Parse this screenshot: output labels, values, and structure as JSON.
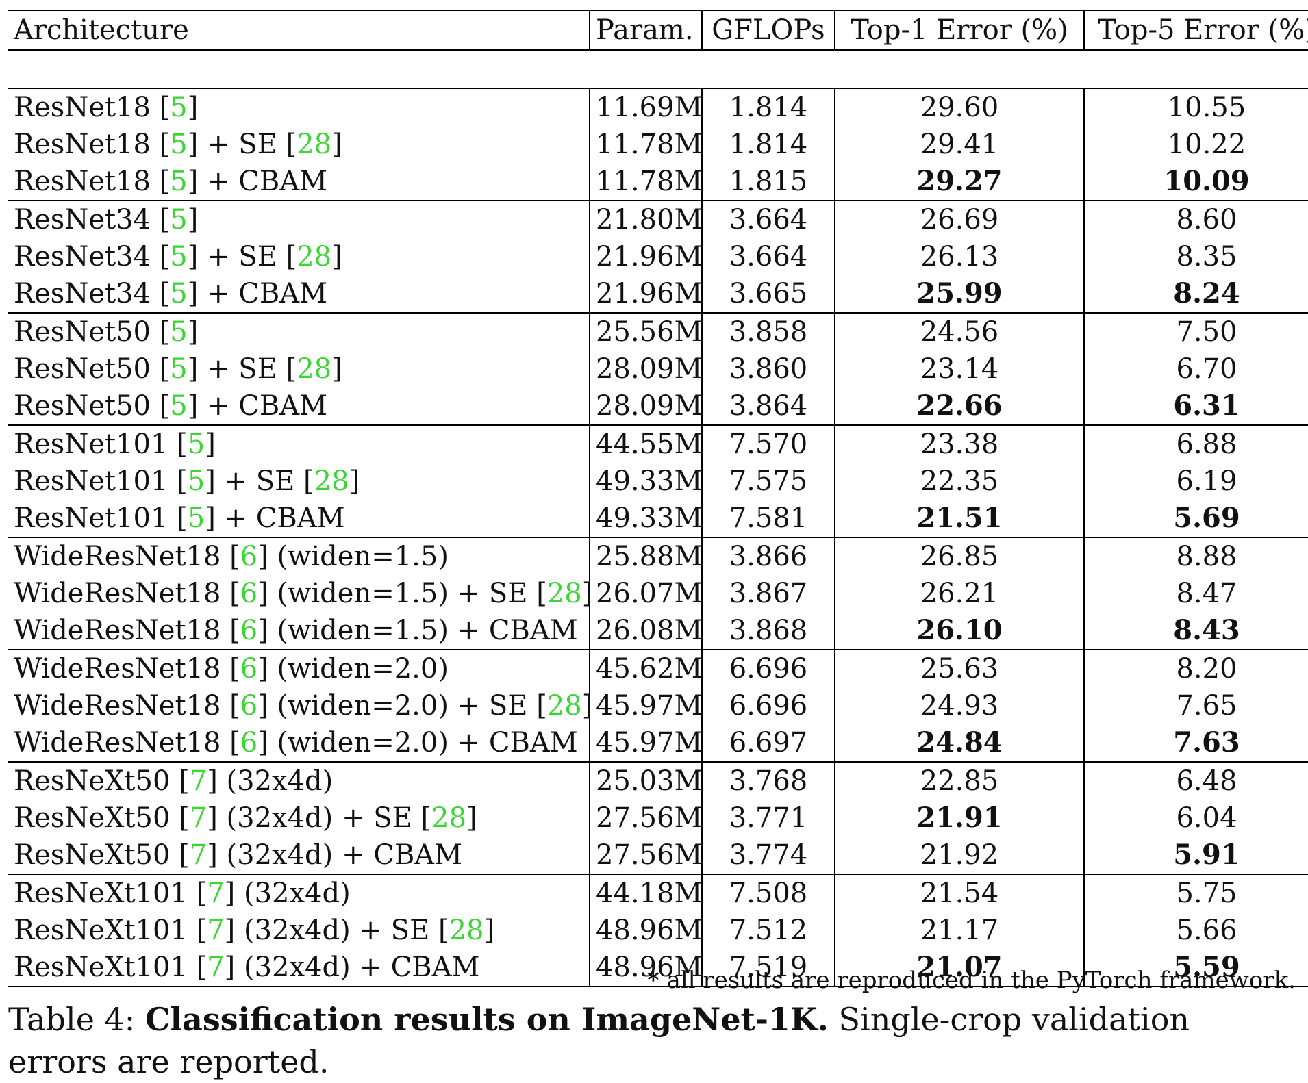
{
  "table": {
    "headers": {
      "architecture": "Architecture",
      "param": "Param.",
      "gflops": "GFLOPs",
      "top1": "Top-1 Error (%)",
      "top5": "Top-5 Error (%)"
    },
    "groups": [
      {
        "rows": [
          {
            "arch": [
              "ResNet18 [",
              {
                "ref": "5"
              },
              "]"
            ],
            "param": "11.69M",
            "gflops": "1.814",
            "top1": "29.60",
            "top5": "10.55",
            "top1_bold": false,
            "top5_bold": false
          },
          {
            "arch": [
              "ResNet18 [",
              {
                "ref": "5"
              },
              "] + SE [",
              {
                "ref": "28"
              },
              "]"
            ],
            "param": "11.78M",
            "gflops": "1.814",
            "top1": "29.41",
            "top5": "10.22",
            "top1_bold": false,
            "top5_bold": false
          },
          {
            "arch": [
              "ResNet18 [",
              {
                "ref": "5"
              },
              "] + CBAM"
            ],
            "param": "11.78M",
            "gflops": "1.815",
            "top1": "29.27",
            "top5": "10.09",
            "top1_bold": true,
            "top5_bold": true
          }
        ]
      },
      {
        "rows": [
          {
            "arch": [
              "ResNet34 [",
              {
                "ref": "5"
              },
              "]"
            ],
            "param": "21.80M",
            "gflops": "3.664",
            "top1": "26.69",
            "top5": "8.60",
            "top1_bold": false,
            "top5_bold": false
          },
          {
            "arch": [
              "ResNet34 [",
              {
                "ref": "5"
              },
              "] + SE [",
              {
                "ref": "28"
              },
              "]"
            ],
            "param": "21.96M",
            "gflops": "3.664",
            "top1": "26.13",
            "top5": "8.35",
            "top1_bold": false,
            "top5_bold": false
          },
          {
            "arch": [
              "ResNet34 [",
              {
                "ref": "5"
              },
              "] + CBAM"
            ],
            "param": "21.96M",
            "gflops": "3.665",
            "top1": "25.99",
            "top5": "8.24",
            "top1_bold": true,
            "top5_bold": true
          }
        ]
      },
      {
        "rows": [
          {
            "arch": [
              "ResNet50 [",
              {
                "ref": "5"
              },
              "]"
            ],
            "param": "25.56M",
            "gflops": "3.858",
            "top1": "24.56",
            "top5": "7.50",
            "top1_bold": false,
            "top5_bold": false
          },
          {
            "arch": [
              "ResNet50 [",
              {
                "ref": "5"
              },
              "] + SE [",
              {
                "ref": "28"
              },
              "]"
            ],
            "param": "28.09M",
            "gflops": "3.860",
            "top1": "23.14",
            "top5": "6.70",
            "top1_bold": false,
            "top5_bold": false
          },
          {
            "arch": [
              "ResNet50 [",
              {
                "ref": "5"
              },
              "] + CBAM"
            ],
            "param": "28.09M",
            "gflops": "3.864",
            "top1": "22.66",
            "top5": "6.31",
            "top1_bold": true,
            "top5_bold": true
          }
        ]
      },
      {
        "rows": [
          {
            "arch": [
              "ResNet101 [",
              {
                "ref": "5"
              },
              "]"
            ],
            "param": "44.55M",
            "gflops": "7.570",
            "top1": "23.38",
            "top5": "6.88",
            "top1_bold": false,
            "top5_bold": false
          },
          {
            "arch": [
              "ResNet101 [",
              {
                "ref": "5"
              },
              "] + SE [",
              {
                "ref": "28"
              },
              "]"
            ],
            "param": "49.33M",
            "gflops": "7.575",
            "top1": "22.35",
            "top5": "6.19",
            "top1_bold": false,
            "top5_bold": false
          },
          {
            "arch": [
              "ResNet101 [",
              {
                "ref": "5"
              },
              "] + CBAM"
            ],
            "param": "49.33M",
            "gflops": "7.581",
            "top1": "21.51",
            "top5": "5.69",
            "top1_bold": true,
            "top5_bold": true
          }
        ]
      },
      {
        "rows": [
          {
            "arch": [
              "WideResNet18 [",
              {
                "ref": "6"
              },
              "] (widen=1.5)"
            ],
            "param": "25.88M",
            "gflops": "3.866",
            "top1": "26.85",
            "top5": "8.88",
            "top1_bold": false,
            "top5_bold": false
          },
          {
            "arch": [
              "WideResNet18 [",
              {
                "ref": "6"
              },
              "] (widen=1.5) + SE [",
              {
                "ref": "28"
              },
              "]"
            ],
            "param": "26.07M",
            "gflops": "3.867",
            "top1": "26.21",
            "top5": "8.47",
            "top1_bold": false,
            "top5_bold": false
          },
          {
            "arch": [
              "WideResNet18 [",
              {
                "ref": "6"
              },
              "] (widen=1.5) + CBAM"
            ],
            "param": "26.08M",
            "gflops": "3.868",
            "top1": "26.10",
            "top5": "8.43",
            "top1_bold": true,
            "top5_bold": true
          }
        ]
      },
      {
        "rows": [
          {
            "arch": [
              "WideResNet18 [",
              {
                "ref": "6"
              },
              "] (widen=2.0)"
            ],
            "param": "45.62M",
            "gflops": "6.696",
            "top1": "25.63",
            "top5": "8.20",
            "top1_bold": false,
            "top5_bold": false
          },
          {
            "arch": [
              "WideResNet18 [",
              {
                "ref": "6"
              },
              "] (widen=2.0) + SE [",
              {
                "ref": "28"
              },
              "]"
            ],
            "param": "45.97M",
            "gflops": "6.696",
            "top1": "24.93",
            "top5": "7.65",
            "top1_bold": false,
            "top5_bold": false
          },
          {
            "arch": [
              "WideResNet18 [",
              {
                "ref": "6"
              },
              "] (widen=2.0) + CBAM"
            ],
            "param": "45.97M",
            "gflops": "6.697",
            "top1": "24.84",
            "top5": "7.63",
            "top1_bold": true,
            "top5_bold": true
          }
        ]
      },
      {
        "rows": [
          {
            "arch": [
              "ResNeXt50 [",
              {
                "ref": "7"
              },
              "] (32x4d)"
            ],
            "param": "25.03M",
            "gflops": "3.768",
            "top1": "22.85",
            "top5": "6.48",
            "top1_bold": false,
            "top5_bold": false
          },
          {
            "arch": [
              "ResNeXt50 [",
              {
                "ref": "7"
              },
              "] (32x4d) + SE [",
              {
                "ref": "28"
              },
              "]"
            ],
            "param": "27.56M",
            "gflops": "3.771",
            "top1": "21.91",
            "top5": "6.04",
            "top1_bold": true,
            "top5_bold": false
          },
          {
            "arch": [
              "ResNeXt50 [",
              {
                "ref": "7"
              },
              "] (32x4d) + CBAM"
            ],
            "param": "27.56M",
            "gflops": "3.774",
            "top1": "21.92",
            "top5": "5.91",
            "top1_bold": false,
            "top5_bold": true
          }
        ]
      },
      {
        "rows": [
          {
            "arch": [
              "ResNeXt101 [",
              {
                "ref": "7"
              },
              "] (32x4d)"
            ],
            "param": "44.18M",
            "gflops": "7.508",
            "top1": "21.54",
            "top5": "5.75",
            "top1_bold": false,
            "top5_bold": false
          },
          {
            "arch": [
              "ResNeXt101 [",
              {
                "ref": "7"
              },
              "] (32x4d) + SE [",
              {
                "ref": "28"
              },
              "]"
            ],
            "param": "48.96M",
            "gflops": "7.512",
            "top1": "21.17",
            "top5": "5.66",
            "top1_bold": false,
            "top5_bold": false
          },
          {
            "arch": [
              "ResNeXt101 [",
              {
                "ref": "7"
              },
              "] (32x4d) + CBAM"
            ],
            "param": "48.96M",
            "gflops": "7.519",
            "top1": "21.07",
            "top5": "5.59",
            "top1_bold": true,
            "top5_bold": true
          }
        ]
      }
    ]
  },
  "footnote": {
    "marker": "*",
    "text": " all results are reproduced in the PyTorch framework."
  },
  "caption": {
    "label": "Table 4: ",
    "title": "Classification results on ImageNet-1K.",
    "text": " Single-crop validation errors are reported."
  },
  "colors": {
    "citation": "#3bd634"
  }
}
